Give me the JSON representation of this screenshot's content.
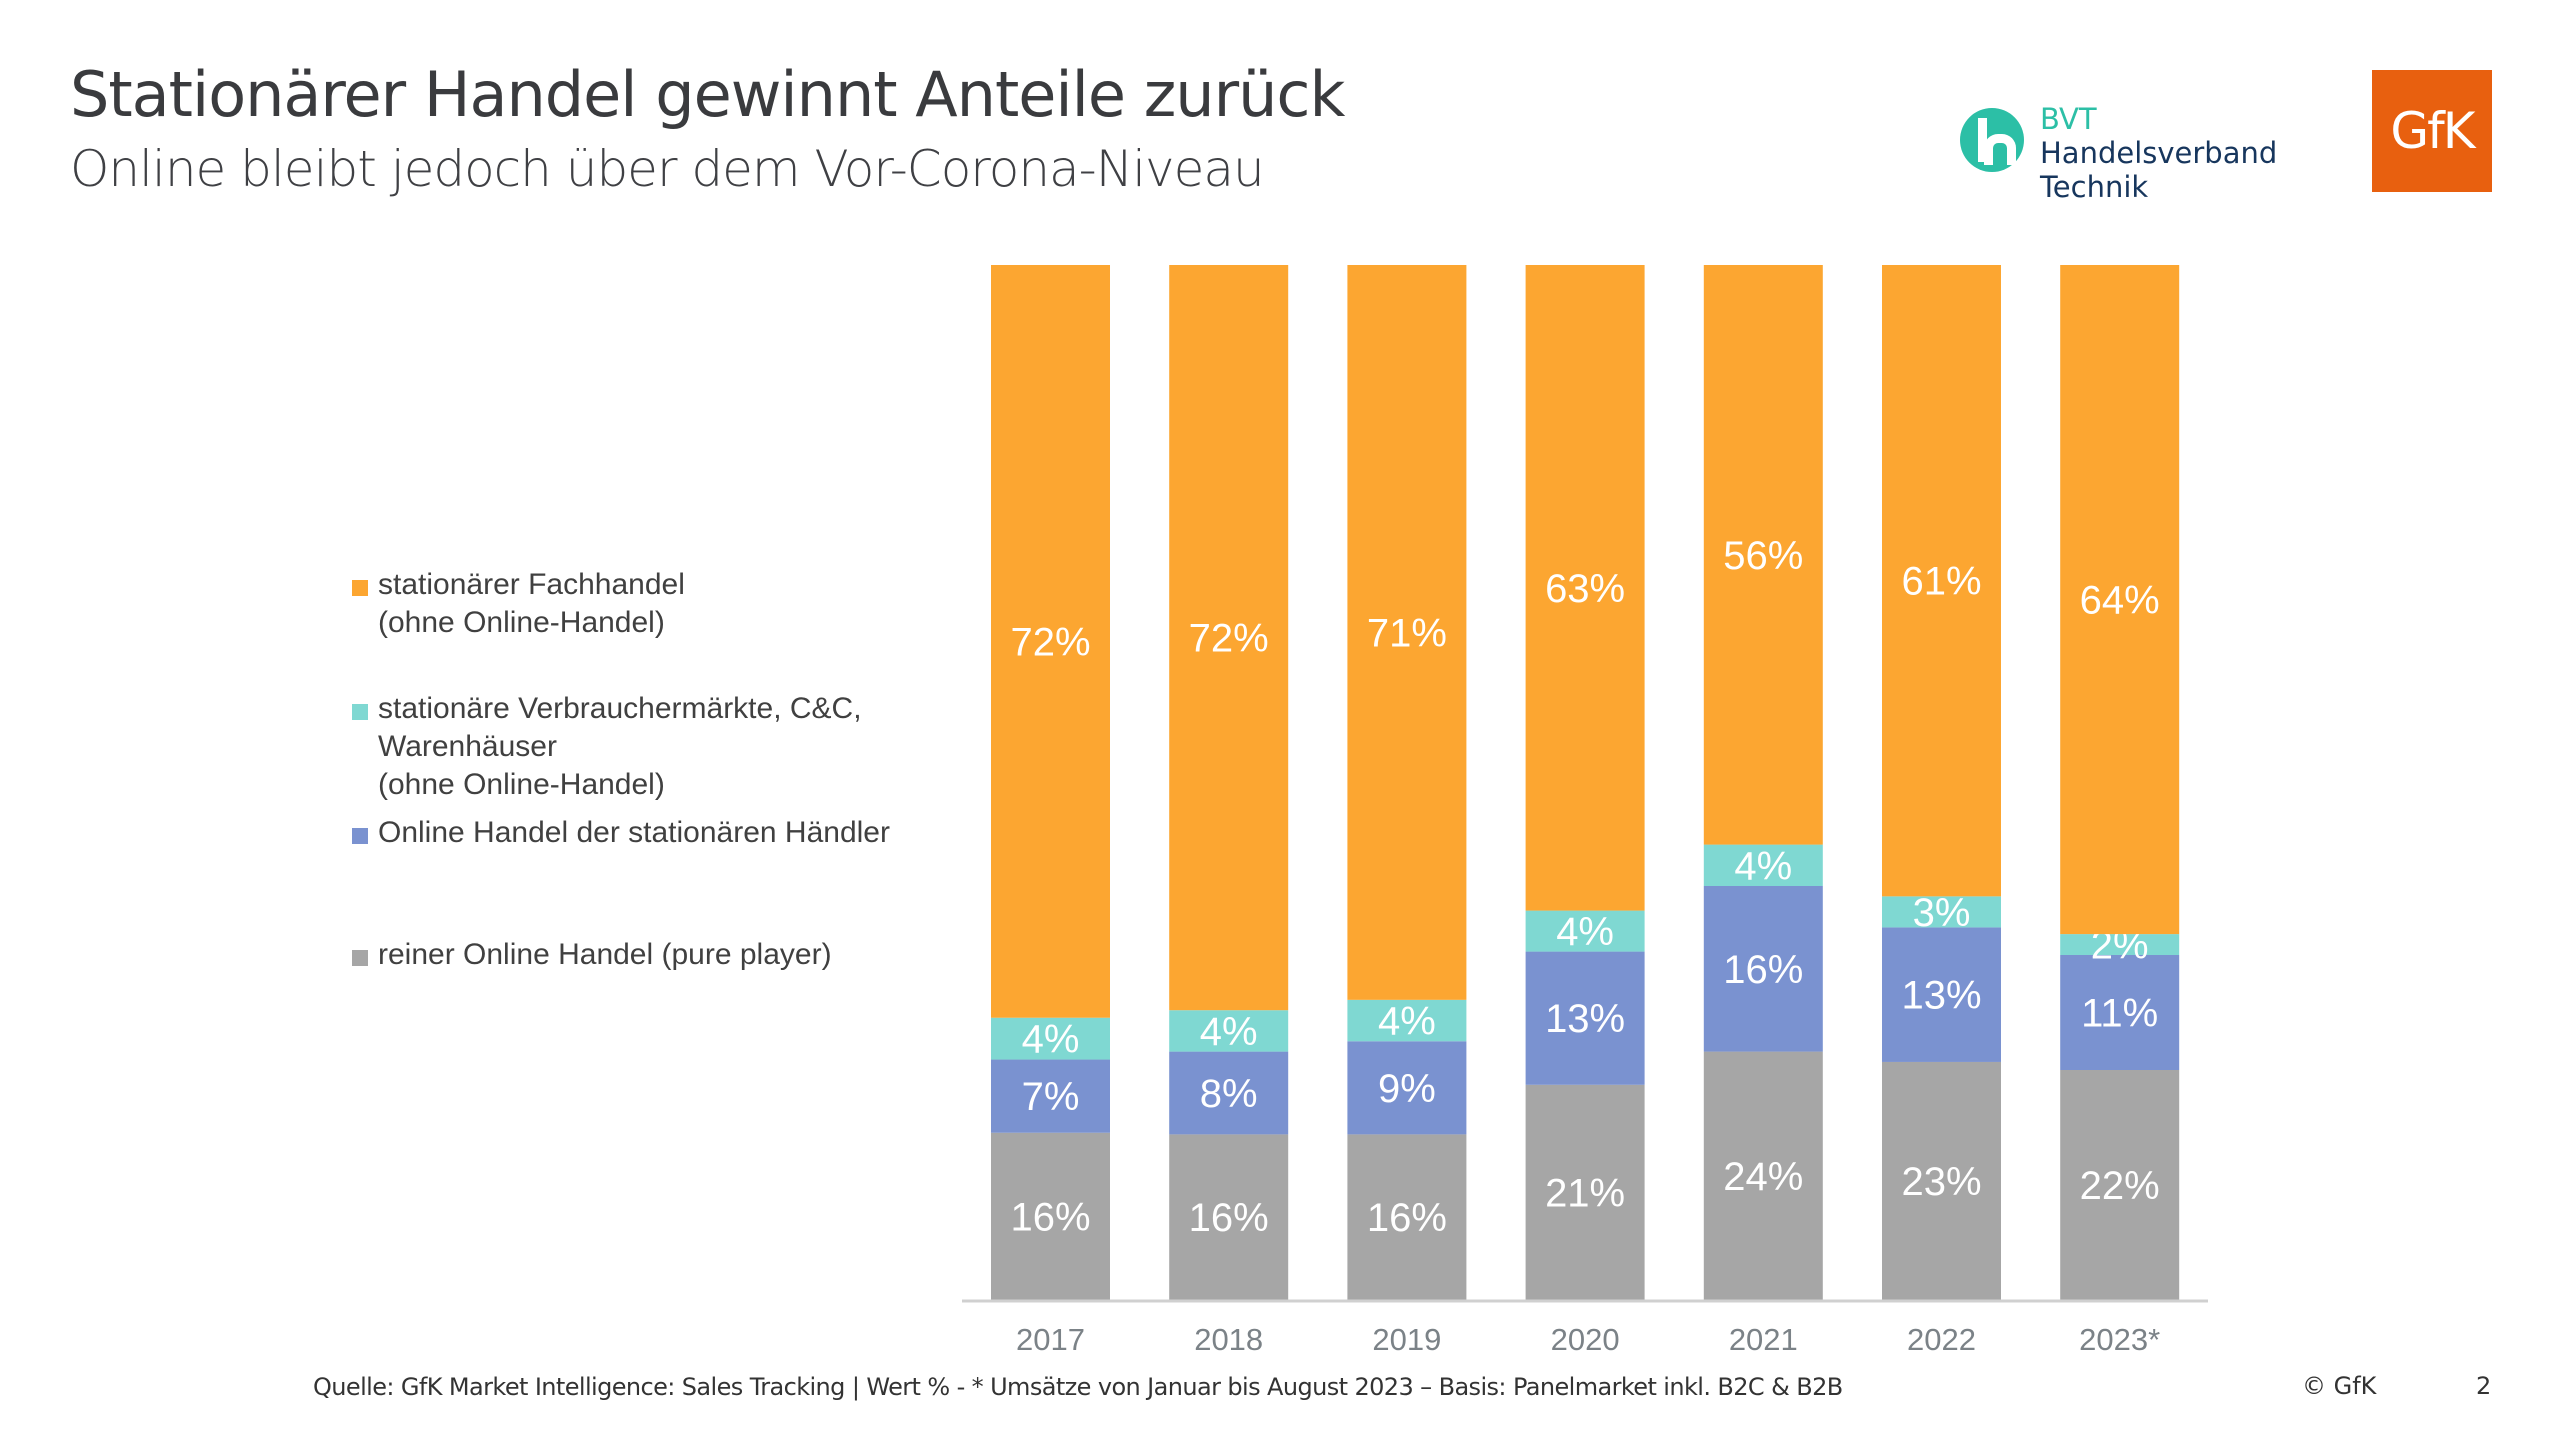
{
  "header": {
    "title": "Stationärer Handel gewinnt Anteile zurück",
    "subtitle": "Online bleibt jedoch über dem Vor-Corona-Niveau"
  },
  "logos": {
    "bvt": {
      "abbr": "BVT",
      "line1": "Handelsverband",
      "line2": "Technik",
      "color": "#2cbfa6",
      "text_color": "#17365d"
    },
    "gfk": {
      "text": "GfK",
      "color": "#e8600f"
    }
  },
  "footer": {
    "source": "Quelle: GfK Market Intelligence: Sales Tracking | Wert % - * Umsätze von Januar bis August 2023 – Basis: Panelmarket inkl. B2C & B2B",
    "copyright": "© GfK",
    "page_number": "2"
  },
  "chart_data": {
    "type": "bar",
    "stacked": true,
    "title": "",
    "xlabel": "",
    "ylabel": "",
    "ylim": [
      0,
      100
    ],
    "unit": "%",
    "grid": false,
    "legend_position": "left",
    "categories": [
      "2017",
      "2018",
      "2019",
      "2020",
      "2021",
      "2022",
      "2023*"
    ],
    "series": [
      {
        "name": "reiner Online Handel (pure player)",
        "color": "#a6a6a6",
        "values": [
          16,
          16,
          16,
          21,
          24,
          23,
          22
        ]
      },
      {
        "name": "Online Handel der stationären Händler",
        "color": "#7a92d0",
        "values": [
          7,
          8,
          9,
          13,
          16,
          13,
          11
        ]
      },
      {
        "name": "stationäre Verbrauchermärkte, C&C,\nWarenhäuser\n(ohne Online-Handel)",
        "color": "#7fd8d2",
        "values": [
          4,
          4,
          4,
          4,
          4,
          3,
          2
        ]
      },
      {
        "name": "stationärer Fachhandel\n(ohne Online-Handel)",
        "color": "#fca631",
        "values": [
          72,
          72,
          71,
          63,
          56,
          61,
          64
        ]
      }
    ],
    "legend": [
      {
        "label": "stationärer Fachhandel\n(ohne Online-Handel)",
        "color": "#fca631"
      },
      {
        "label": "stationäre Verbrauchermärkte, C&C,\nWarenhäuser\n(ohne Online-Handel)",
        "color": "#7fd8d2"
      },
      {
        "label": "Online Handel der stationären Händler",
        "color": "#7a92d0"
      },
      {
        "label": "reiner Online Handel (pure player)",
        "color": "#a6a6a6"
      }
    ]
  }
}
